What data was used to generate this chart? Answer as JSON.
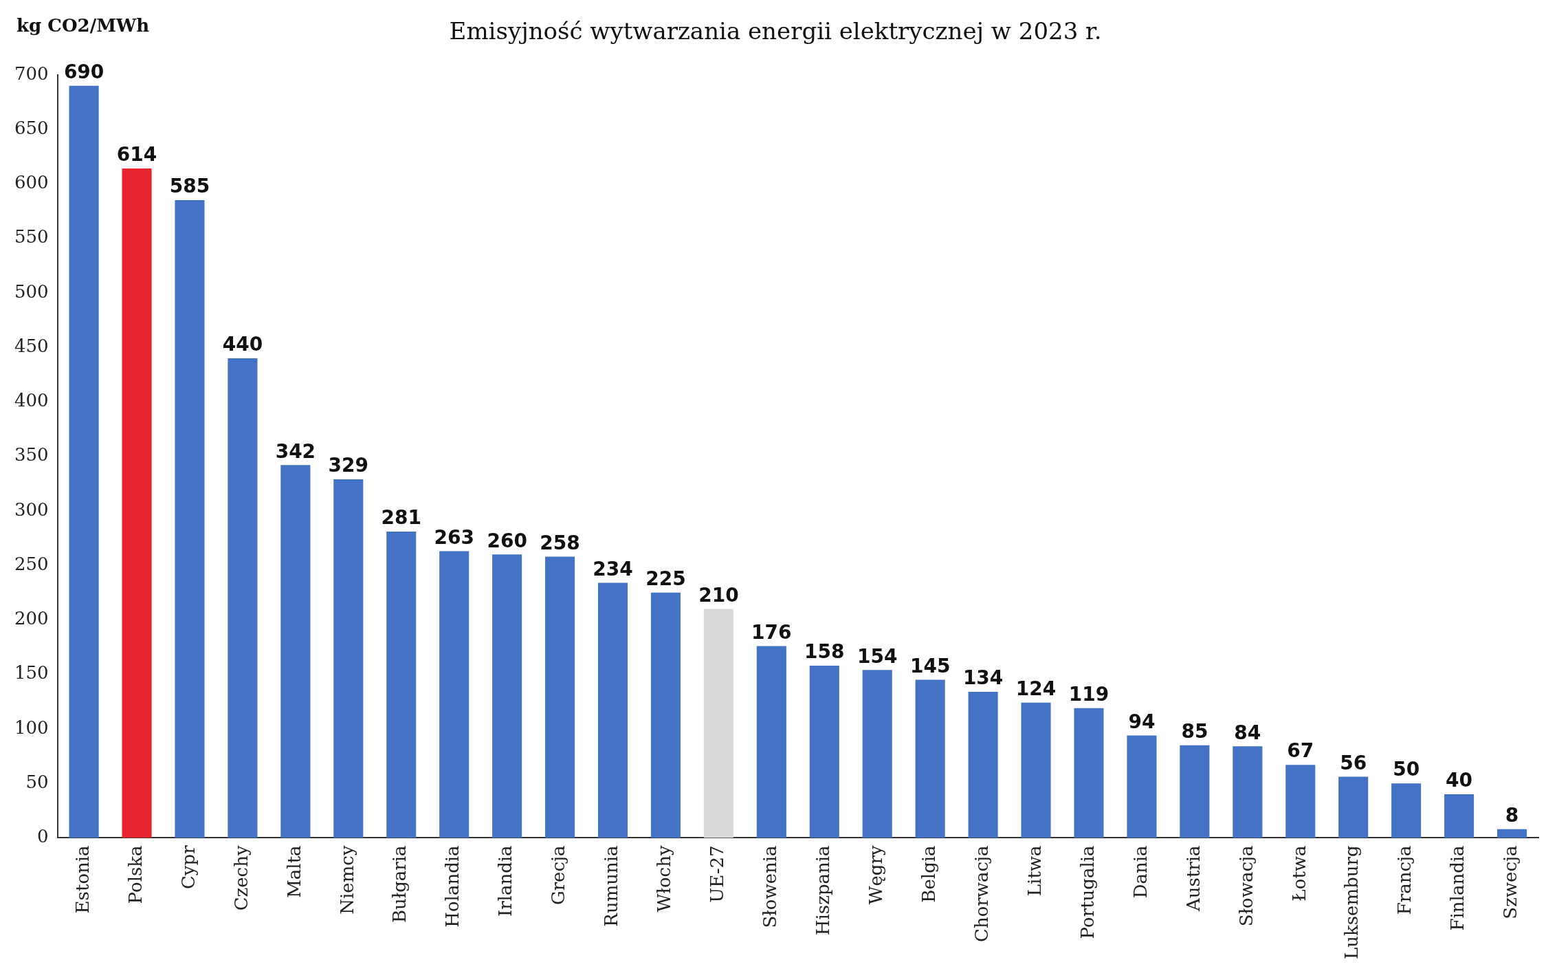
{
  "chart_data": {
    "type": "bar",
    "title": "Emisyjność wytwarzania energii elektrycznej w 2023 r.",
    "ylabel": "kg CO2/MWh",
    "categories": [
      "Estonia",
      "Polska",
      "Cypr",
      "Czechy",
      "Malta",
      "Niemcy",
      "Bułgaria",
      "Holandia",
      "Irlandia",
      "Grecja",
      "Rumunia",
      "Włochy",
      "UE-27",
      "Słowenia",
      "Hiszpania",
      "Węgry",
      "Belgia",
      "Chorwacja",
      "Litwa",
      "Portugalia",
      "Dania",
      "Austria",
      "Słowacja",
      "Łotwa",
      "Luksemburg",
      "Francja",
      "Finlandia",
      "Szwecja"
    ],
    "values": [
      690,
      614,
      585,
      440,
      342,
      329,
      281,
      263,
      260,
      258,
      234,
      225,
      210,
      176,
      158,
      154,
      145,
      134,
      124,
      119,
      94,
      85,
      84,
      67,
      56,
      50,
      40,
      8
    ],
    "colors": [
      "#4472c4",
      "#e8262f",
      "#4472c4",
      "#4472c4",
      "#4472c4",
      "#4472c4",
      "#4472c4",
      "#4472c4",
      "#4472c4",
      "#4472c4",
      "#4472c4",
      "#4472c4",
      "#d9d9db",
      "#4472c4",
      "#4472c4",
      "#4472c4",
      "#4472c4",
      "#4472c4",
      "#4472c4",
      "#4472c4",
      "#4472c4",
      "#4472c4",
      "#4472c4",
      "#4472c4",
      "#4472c4",
      "#4472c4",
      "#4472c4",
      "#4472c4"
    ],
    "ylim": [
      0,
      700
    ],
    "yticks": [
      0,
      50,
      100,
      150,
      200,
      250,
      300,
      350,
      400,
      450,
      500,
      550,
      600,
      650,
      700
    ],
    "grid": false,
    "legend": false,
    "data_labels": true
  }
}
